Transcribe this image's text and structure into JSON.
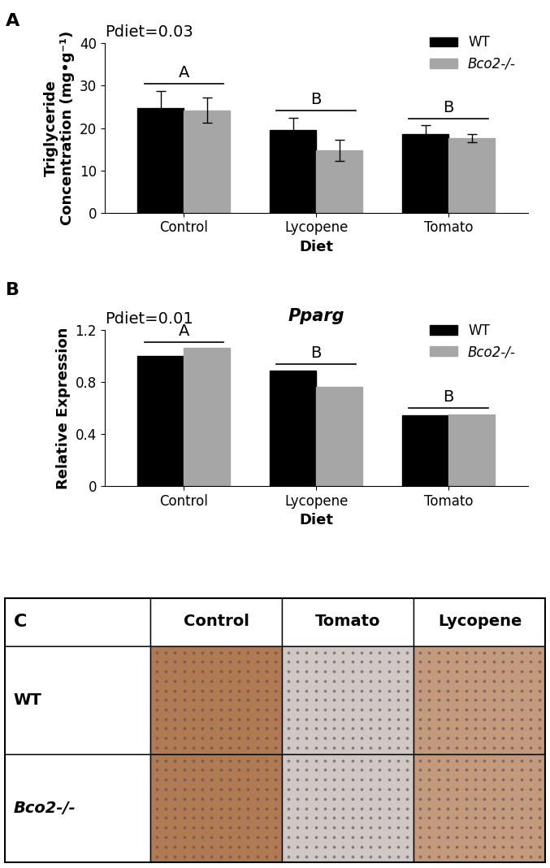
{
  "chart_data": [
    {
      "type": "bar",
      "panel_label": "A",
      "annotation": "Pdiet=0.03",
      "xlabel": "Diet",
      "ylabel": "Triglyceride\nConcentration (mg•g⁻¹)",
      "categories": [
        "Control",
        "Lycopene",
        "Tomato"
      ],
      "series": [
        {
          "name": "WT",
          "color": "#000000",
          "values": [
            24.8,
            19.5,
            18.6
          ],
          "errors": [
            4.0,
            3.0,
            2.0
          ]
        },
        {
          "name": "Bco2-/-",
          "color": "#a6a6a6",
          "values": [
            24.2,
            14.8,
            17.6
          ],
          "errors": [
            3.0,
            2.5,
            1.0
          ]
        }
      ],
      "group_labels": [
        "A",
        "B",
        "B"
      ],
      "ylim": [
        0,
        40
      ],
      "yticks": [
        0,
        10,
        20,
        30,
        40
      ],
      "legend": "upper right"
    },
    {
      "type": "bar",
      "panel_label": "B",
      "title": "Pparg",
      "annotation": "Pdiet=0.01",
      "xlabel": "Diet",
      "ylabel": "Relative Expression",
      "categories": [
        "Control",
        "Lycopene",
        "Tomato"
      ],
      "series": [
        {
          "name": "WT",
          "color": "#000000",
          "values": [
            1.0,
            0.89,
            0.545
          ]
        },
        {
          "name": "Bco2-/-",
          "color": "#a6a6a6",
          "values": [
            1.06,
            0.76,
            0.55
          ]
        }
      ],
      "group_labels": [
        "A",
        "B",
        "B"
      ],
      "ylim": [
        0,
        1.2
      ],
      "yticks": [
        0,
        0.4,
        0.8,
        1.2
      ],
      "legend": "upper right"
    }
  ],
  "table": {
    "panel_label": "C",
    "header": [
      "Control",
      "Tomato",
      "Lycopene"
    ],
    "row_labels": [
      "WT",
      "Bco2-/-"
    ]
  }
}
